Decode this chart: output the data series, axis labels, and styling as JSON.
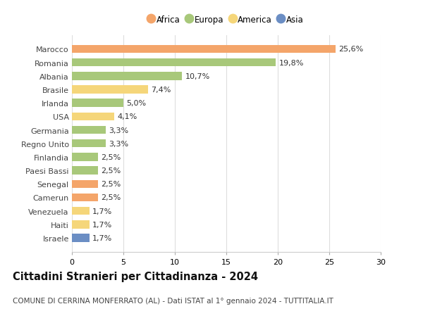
{
  "countries": [
    "Marocco",
    "Romania",
    "Albania",
    "Brasile",
    "Irlanda",
    "USA",
    "Germania",
    "Regno Unito",
    "Finlandia",
    "Paesi Bassi",
    "Senegal",
    "Camerun",
    "Venezuela",
    "Haiti",
    "Israele"
  ],
  "values": [
    25.6,
    19.8,
    10.7,
    7.4,
    5.0,
    4.1,
    3.3,
    3.3,
    2.5,
    2.5,
    2.5,
    2.5,
    1.7,
    1.7,
    1.7
  ],
  "labels": [
    "25,6%",
    "19,8%",
    "10,7%",
    "7,4%",
    "5,0%",
    "4,1%",
    "3,3%",
    "3,3%",
    "2,5%",
    "2,5%",
    "2,5%",
    "2,5%",
    "1,7%",
    "1,7%",
    "1,7%"
  ],
  "continents": [
    "Africa",
    "Europa",
    "Europa",
    "America",
    "Europa",
    "America",
    "Europa",
    "Europa",
    "Europa",
    "Europa",
    "Africa",
    "Africa",
    "America",
    "America",
    "Asia"
  ],
  "colors": {
    "Africa": "#F4A56A",
    "Europa": "#A8C87A",
    "America": "#F5D67A",
    "Asia": "#6B8EC4"
  },
  "legend_order": [
    "Africa",
    "Europa",
    "America",
    "Asia"
  ],
  "xlim": [
    0,
    30
  ],
  "xticks": [
    0,
    5,
    10,
    15,
    20,
    25,
    30
  ],
  "title": "Cittadini Stranieri per Cittadinanza - 2024",
  "subtitle": "COMUNE DI CERRINA MONFERRATO (AL) - Dati ISTAT al 1° gennaio 2024 - TUTTITALIA.IT",
  "title_fontsize": 10.5,
  "subtitle_fontsize": 7.5,
  "label_fontsize": 8,
  "ytick_fontsize": 8,
  "xtick_fontsize": 8,
  "legend_fontsize": 8.5,
  "bg_color": "#ffffff",
  "grid_color": "#dddddd",
  "bar_height": 0.6
}
